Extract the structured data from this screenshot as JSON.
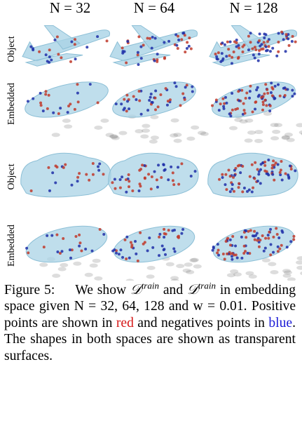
{
  "figure": {
    "columns": [
      "N = 32",
      "N = 64",
      "N = 128"
    ],
    "rows": [
      "Object",
      "Embedded",
      "Object",
      "Embedded"
    ],
    "caption": {
      "label": "Figure 5:",
      "parts": [
        "We show",
        "𝒟",
        "train",
        "and",
        "𝒟",
        "train",
        "in embedding space given",
        "N = 32, 64, 128",
        "and",
        "w = 0.01.",
        "Positive points are shown in",
        "red",
        "and negatives points in",
        "blue",
        ".",
        "The shapes in both spaces are shown as transparent surfaces."
      ]
    }
  }
}
